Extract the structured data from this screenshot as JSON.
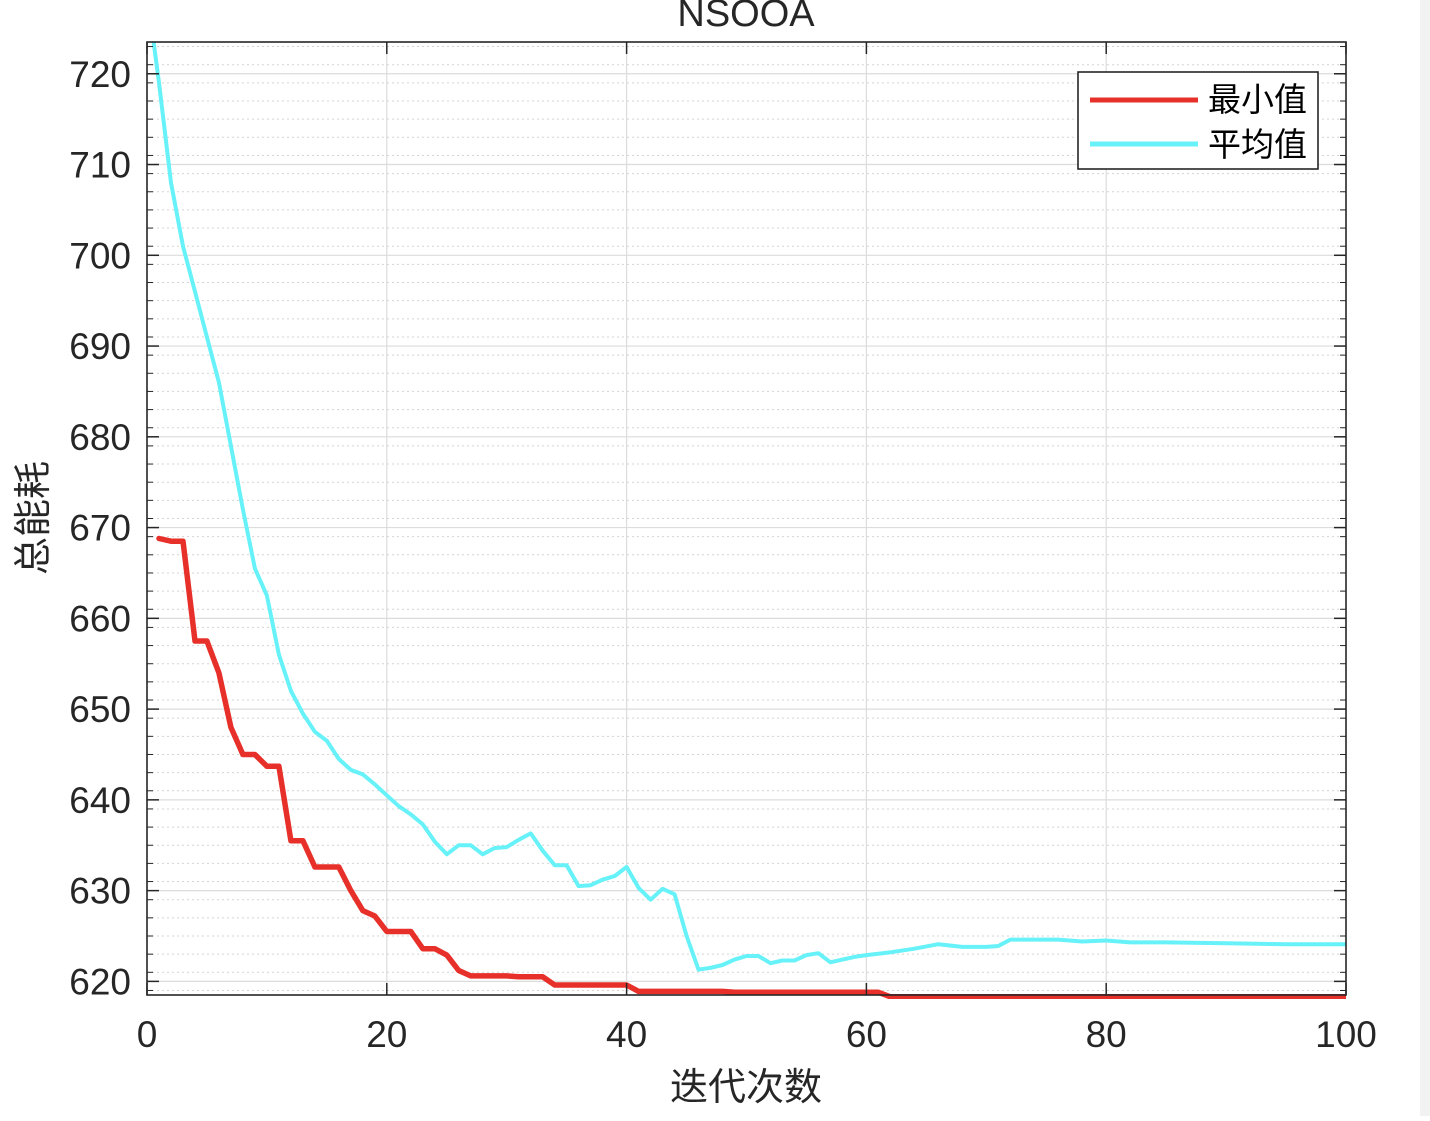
{
  "chart_data": {
    "type": "line",
    "title": "NSOOA",
    "xlabel": "迭代次数",
    "ylabel": "总能耗",
    "xlim": [
      0,
      100
    ],
    "ylim": [
      618.5,
      723.5
    ],
    "xticks": [
      0,
      20,
      40,
      60,
      80,
      100
    ],
    "yticks": [
      620,
      630,
      640,
      650,
      660,
      670,
      680,
      690,
      700,
      710,
      720
    ],
    "grid": true,
    "minor_grid": true,
    "legend_position": "top-right",
    "series": [
      {
        "name": "最小值",
        "color": "#e8302a",
        "x": [
          1,
          2,
          3,
          4,
          5,
          6,
          7,
          8,
          9,
          10,
          11,
          12,
          13,
          14,
          15,
          16,
          17,
          18,
          19,
          20,
          21,
          22,
          23,
          24,
          25,
          26,
          27,
          28,
          29,
          30,
          31,
          32,
          33,
          34,
          35,
          36,
          37,
          38,
          39,
          40,
          41,
          42,
          43,
          44,
          45,
          46,
          47,
          48,
          49,
          50,
          55,
          60,
          61,
          62,
          65,
          70,
          75,
          80,
          85,
          90,
          95,
          100
        ],
        "values": [
          668.8,
          668.5,
          668.5,
          657.5,
          657.5,
          654,
          648,
          645,
          645,
          643.7,
          643.7,
          635.5,
          635.5,
          632.6,
          632.6,
          632.6,
          630,
          627.8,
          627.2,
          625.5,
          625.5,
          625.5,
          623.6,
          623.6,
          622.9,
          621.2,
          620.6,
          620.6,
          620.6,
          620.6,
          620.5,
          620.5,
          620.5,
          619.6,
          619.6,
          619.6,
          619.6,
          619.6,
          619.6,
          619.6,
          618.9,
          618.9,
          618.9,
          618.9,
          618.9,
          618.9,
          618.9,
          618.9,
          618.8,
          618.8,
          618.8,
          618.8,
          618.8,
          618.3,
          618.3,
          618.3,
          618.3,
          618.3,
          618.3,
          618.3,
          618.3,
          618.3
        ]
      },
      {
        "name": "平均值",
        "color": "#66f2f8",
        "x": [
          0.5,
          1,
          2,
          3,
          4,
          5,
          6,
          7,
          8,
          9,
          10,
          11,
          12,
          13,
          14,
          15,
          16,
          17,
          18,
          19,
          20,
          21,
          22,
          23,
          24,
          25,
          26,
          27,
          28,
          29,
          30,
          31,
          32,
          33,
          34,
          35,
          36,
          37,
          38,
          39,
          40,
          41,
          42,
          43,
          44,
          45,
          46,
          47,
          48,
          49,
          50,
          51,
          52,
          53,
          54,
          55,
          56,
          57,
          58,
          59,
          60,
          62,
          64,
          66,
          68,
          70,
          71,
          72,
          74,
          76,
          78,
          80,
          82,
          85,
          90,
          95,
          100
        ],
        "values": [
          724,
          719,
          708,
          701,
          696,
          691,
          686,
          679,
          672,
          665.5,
          662.5,
          656,
          652,
          649.5,
          647.5,
          646.5,
          644.5,
          643.3,
          642.8,
          641.7,
          640.5,
          639.3,
          638.4,
          637.3,
          635.4,
          634,
          635,
          635,
          634,
          634.7,
          634.8,
          635.6,
          636.3,
          634.4,
          632.8,
          632.8,
          630.5,
          630.6,
          631.2,
          631.6,
          632.6,
          630.3,
          629,
          630.2,
          629.6,
          625,
          621.3,
          621.5,
          621.8,
          622.4,
          622.8,
          622.8,
          622,
          622.3,
          622.3,
          622.9,
          623.1,
          622.1,
          622.4,
          622.7,
          622.9,
          623.2,
          623.6,
          624.1,
          623.8,
          623.8,
          623.9,
          624.6,
          624.6,
          624.6,
          624.4,
          624.5,
          624.3,
          624.3,
          624.2,
          624.1,
          624.1
        ]
      }
    ]
  }
}
